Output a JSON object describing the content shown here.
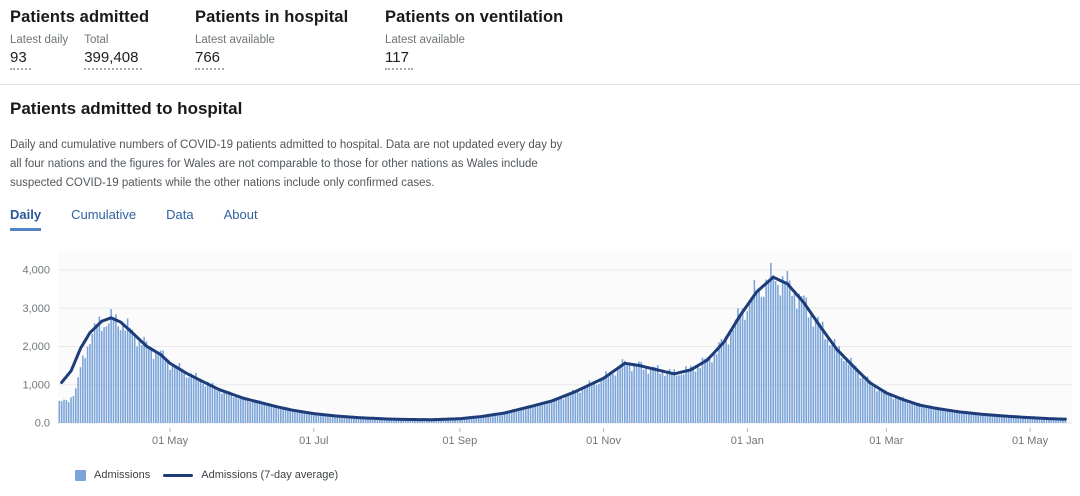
{
  "metrics": [
    {
      "title": "Patients admitted",
      "stats": [
        {
          "label": "Latest daily",
          "value": "93"
        },
        {
          "label": "Total",
          "value": "399,408"
        }
      ]
    },
    {
      "title": "Patients in hospital",
      "stats": [
        {
          "label": "Latest available",
          "value": "766"
        }
      ]
    },
    {
      "title": "Patients on ventilation",
      "stats": [
        {
          "label": "Latest available",
          "value": "117"
        }
      ]
    }
  ],
  "section": {
    "title": "Patients admitted to hospital",
    "description": "Daily and cumulative numbers of COVID-19 patients admitted to hospital. Data are not updated every day by all four nations and the figures for Wales are not comparable to those for other nations as Wales include suspected COVID-19 patients while the other nations include only confirmed cases.",
    "tabs": [
      {
        "label": "Daily",
        "active": true
      },
      {
        "label": "Cumulative",
        "active": false
      },
      {
        "label": "Data",
        "active": false
      },
      {
        "label": "About",
        "active": false
      }
    ]
  },
  "chart_data": {
    "type": "bar+line",
    "start_date": "2020-03-15",
    "end_date": "2021-05-16",
    "ylim": [
      0,
      4000
    ],
    "grid": true,
    "legend_position": "bottom-left",
    "colors": {
      "plot_bg": "#fbfbfc",
      "gridline": "#e9e9eb",
      "tick": "#b5b8ba",
      "tick_label": "#6f777b"
    },
    "y_ticks": [
      {
        "value": 0,
        "label": "0.0"
      },
      {
        "value": 1000,
        "label": "1,000"
      },
      {
        "value": 2000,
        "label": "2,000"
      },
      {
        "value": 3000,
        "label": "3,000"
      },
      {
        "value": 4000,
        "label": "4,000"
      }
    ],
    "x_ticks": [
      {
        "date": "2020-05-01",
        "label": "01 May"
      },
      {
        "date": "2020-07-01",
        "label": "01 Jul"
      },
      {
        "date": "2020-09-01",
        "label": "01 Sep"
      },
      {
        "date": "2020-11-01",
        "label": "01 Nov"
      },
      {
        "date": "2021-01-01",
        "label": "01 Jan"
      },
      {
        "date": "2021-03-01",
        "label": "01 Mar"
      },
      {
        "date": "2021-05-01",
        "label": "01 May"
      }
    ],
    "series": [
      {
        "name": "Admissions",
        "type": "bar",
        "color": "#7ba5d9",
        "keypoints": [
          [
            "2020-03-15",
            550
          ],
          [
            "2020-03-19",
            585
          ],
          [
            "2020-03-22",
            880
          ],
          [
            "2020-03-25",
            1650
          ],
          [
            "2020-03-28",
            2240
          ],
          [
            "2020-04-01",
            2580
          ],
          [
            "2020-04-06",
            2700
          ],
          [
            "2020-04-10",
            2640
          ],
          [
            "2020-04-15",
            2360
          ],
          [
            "2020-04-21",
            2010
          ],
          [
            "2020-04-27",
            1790
          ],
          [
            "2020-05-01",
            1560
          ],
          [
            "2020-05-08",
            1300
          ],
          [
            "2020-05-15",
            1080
          ],
          [
            "2020-05-22",
            870
          ],
          [
            "2020-06-01",
            650
          ],
          [
            "2020-06-08",
            540
          ],
          [
            "2020-06-15",
            430
          ],
          [
            "2020-06-22",
            335
          ],
          [
            "2020-07-01",
            245
          ],
          [
            "2020-07-10",
            185
          ],
          [
            "2020-07-20",
            140
          ],
          [
            "2020-08-01",
            105
          ],
          [
            "2020-08-10",
            92
          ],
          [
            "2020-08-20",
            86
          ],
          [
            "2020-09-01",
            112
          ],
          [
            "2020-09-10",
            168
          ],
          [
            "2020-09-20",
            262
          ],
          [
            "2020-10-01",
            430
          ],
          [
            "2020-10-10",
            575
          ],
          [
            "2020-10-20",
            820
          ],
          [
            "2020-11-01",
            1170
          ],
          [
            "2020-11-10",
            1560
          ],
          [
            "2020-11-16",
            1505
          ],
          [
            "2020-11-23",
            1400
          ],
          [
            "2020-12-01",
            1285
          ],
          [
            "2020-12-08",
            1390
          ],
          [
            "2020-12-15",
            1645
          ],
          [
            "2020-12-22",
            2110
          ],
          [
            "2020-12-29",
            2815
          ],
          [
            "2021-01-05",
            3430
          ],
          [
            "2021-01-12",
            3812
          ],
          [
            "2021-01-18",
            3640
          ],
          [
            "2021-01-25",
            3145
          ],
          [
            "2021-02-01",
            2520
          ],
          [
            "2021-02-08",
            1925
          ],
          [
            "2021-02-15",
            1480
          ],
          [
            "2021-02-22",
            1055
          ],
          [
            "2021-03-01",
            785
          ],
          [
            "2021-03-08",
            615
          ],
          [
            "2021-03-15",
            470
          ],
          [
            "2021-03-22",
            385
          ],
          [
            "2021-04-01",
            290
          ],
          [
            "2021-04-10",
            232
          ],
          [
            "2021-04-20",
            182
          ],
          [
            "2021-05-01",
            140
          ],
          [
            "2021-05-08",
            116
          ],
          [
            "2021-05-16",
            100
          ]
        ],
        "daily_noise": {
          "a1": 0.07,
          "f1": 0.9,
          "a2": 0.05,
          "f2": 2.6,
          "p2": 1.3
        }
      },
      {
        "name": "Admissions (7-day average)",
        "type": "line",
        "color": "#1d3c78",
        "keypoints": [
          [
            "2020-03-16",
            1060
          ],
          [
            "2020-03-20",
            1360
          ],
          [
            "2020-03-24",
            1950
          ],
          [
            "2020-03-28",
            2360
          ],
          [
            "2020-04-02",
            2660
          ],
          [
            "2020-04-06",
            2750
          ],
          [
            "2020-04-10",
            2640
          ],
          [
            "2020-04-15",
            2360
          ],
          [
            "2020-04-21",
            2010
          ],
          [
            "2020-04-27",
            1790
          ],
          [
            "2020-05-01",
            1560
          ],
          [
            "2020-05-08",
            1300
          ],
          [
            "2020-05-15",
            1080
          ],
          [
            "2020-05-22",
            870
          ],
          [
            "2020-06-01",
            650
          ],
          [
            "2020-06-08",
            540
          ],
          [
            "2020-06-15",
            430
          ],
          [
            "2020-06-22",
            335
          ],
          [
            "2020-07-01",
            245
          ],
          [
            "2020-07-10",
            185
          ],
          [
            "2020-07-20",
            140
          ],
          [
            "2020-08-01",
            105
          ],
          [
            "2020-08-10",
            92
          ],
          [
            "2020-08-20",
            86
          ],
          [
            "2020-09-01",
            112
          ],
          [
            "2020-09-10",
            168
          ],
          [
            "2020-09-20",
            262
          ],
          [
            "2020-10-01",
            430
          ],
          [
            "2020-10-10",
            575
          ],
          [
            "2020-10-20",
            820
          ],
          [
            "2020-11-01",
            1170
          ],
          [
            "2020-11-10",
            1560
          ],
          [
            "2020-11-16",
            1505
          ],
          [
            "2020-11-23",
            1400
          ],
          [
            "2020-12-01",
            1285
          ],
          [
            "2020-12-08",
            1390
          ],
          [
            "2020-12-15",
            1645
          ],
          [
            "2020-12-22",
            2110
          ],
          [
            "2020-12-29",
            2815
          ],
          [
            "2021-01-05",
            3430
          ],
          [
            "2021-01-12",
            3812
          ],
          [
            "2021-01-18",
            3640
          ],
          [
            "2021-01-25",
            3145
          ],
          [
            "2021-02-01",
            2520
          ],
          [
            "2021-02-08",
            1925
          ],
          [
            "2021-02-15",
            1480
          ],
          [
            "2021-02-22",
            1055
          ],
          [
            "2021-03-01",
            785
          ],
          [
            "2021-03-08",
            615
          ],
          [
            "2021-03-15",
            470
          ],
          [
            "2021-03-22",
            385
          ],
          [
            "2021-04-01",
            290
          ],
          [
            "2021-04-10",
            232
          ],
          [
            "2021-04-20",
            182
          ],
          [
            "2021-05-01",
            140
          ],
          [
            "2021-05-08",
            116
          ],
          [
            "2021-05-16",
            100
          ]
        ]
      }
    ]
  }
}
